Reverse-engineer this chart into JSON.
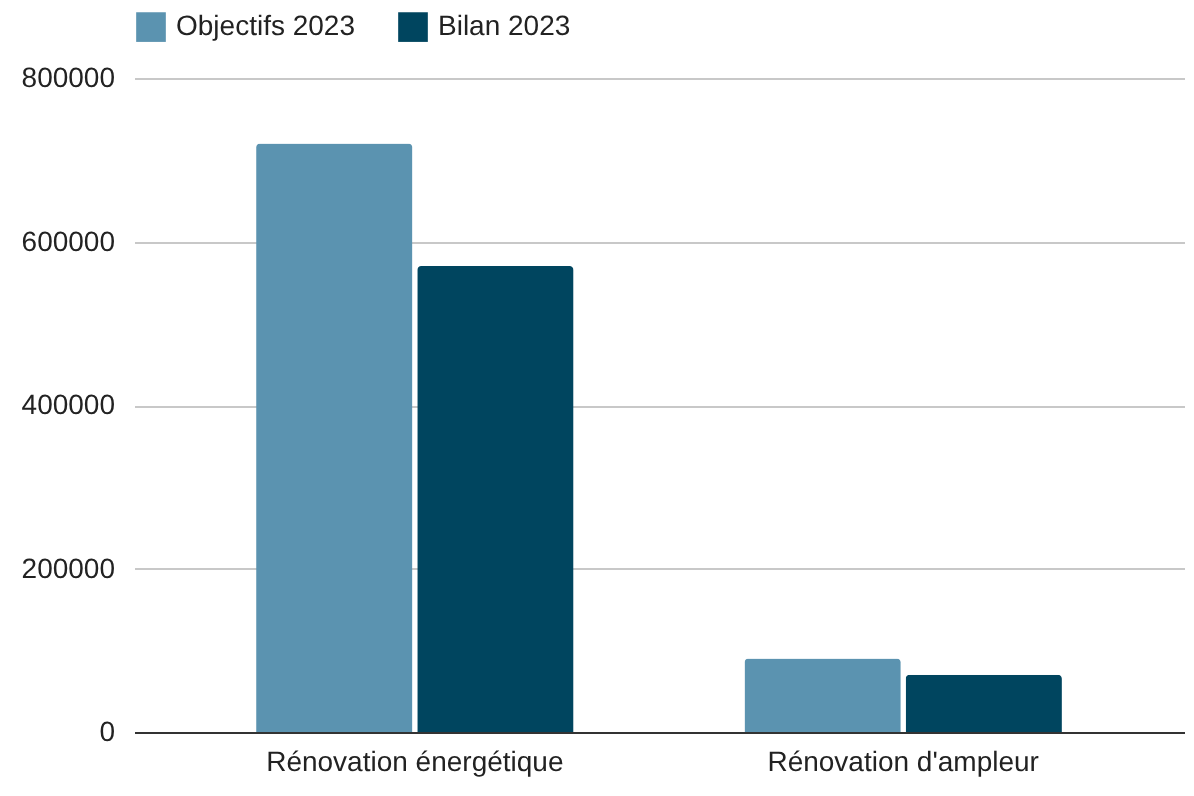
{
  "chart_data": {
    "type": "bar",
    "categories": [
      "Rénovation énergétique",
      "Rénovation d'ampleur"
    ],
    "series": [
      {
        "name": "Objectifs 2023",
        "color": "#5b93b0",
        "values": [
          720000,
          90000
        ]
      },
      {
        "name": "Bilan 2023",
        "color": "#00455f",
        "values": [
          570000,
          70000
        ]
      }
    ],
    "ylim": [
      0,
      800000
    ],
    "yticks": [
      0,
      200000,
      400000,
      600000,
      800000
    ],
    "grid": "y",
    "legend": "top"
  }
}
